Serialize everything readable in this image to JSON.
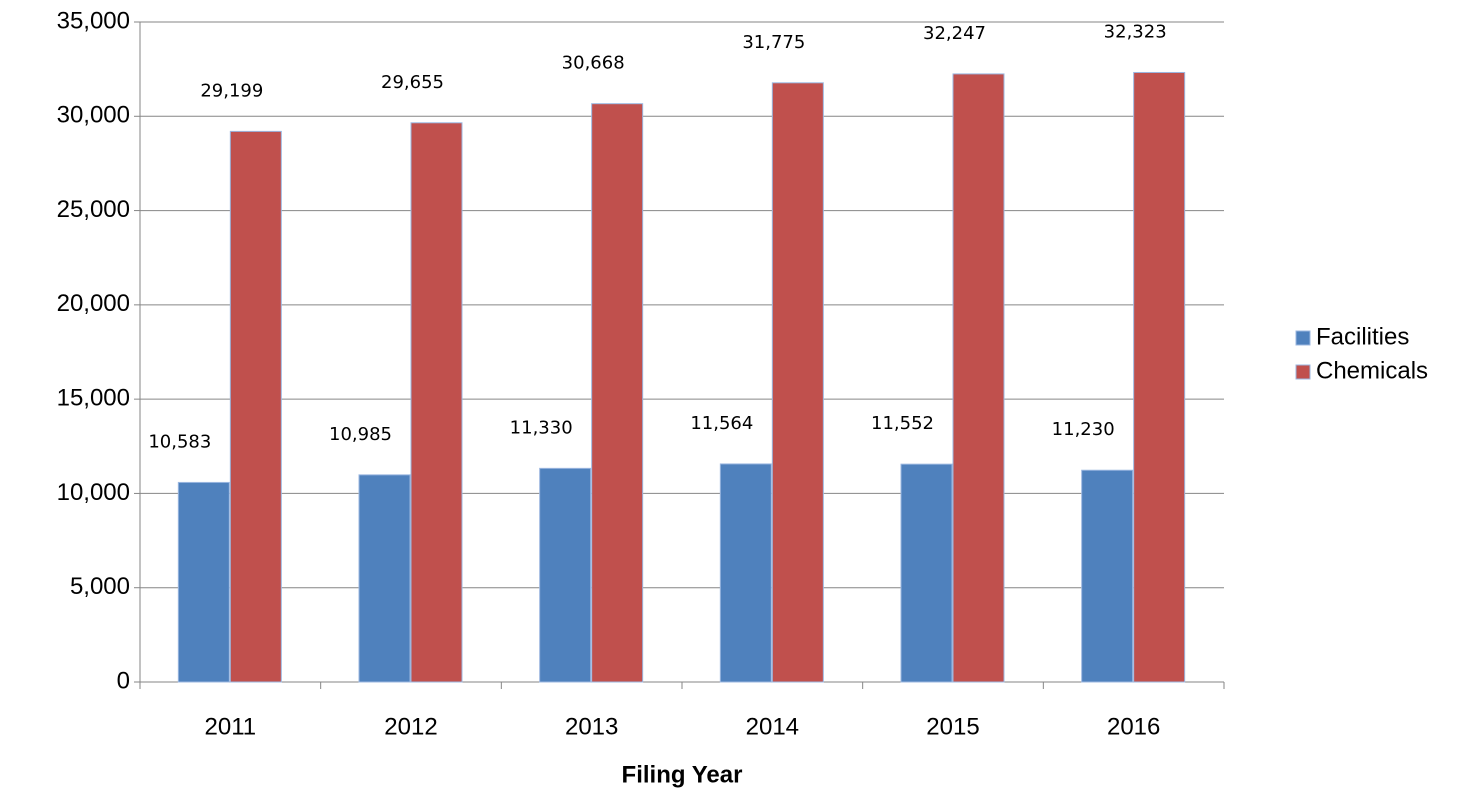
{
  "chart_data": {
    "type": "bar",
    "x_label": "Filing Year",
    "categories": [
      "2011",
      "2012",
      "2013",
      "2014",
      "2015",
      "2016"
    ],
    "series": [
      {
        "name": "Facilities",
        "color": "#4f81bd",
        "values": [
          10583,
          10985,
          11330,
          11564,
          11552,
          11230
        ],
        "value_labels": [
          "10,583",
          "10,985",
          "11,330",
          "11,564",
          "11,552",
          "11,230"
        ]
      },
      {
        "name": "Chemicals",
        "color": "#c0504d",
        "values": [
          29199,
          29655,
          30668,
          31775,
          32247,
          32323
        ],
        "value_labels": [
          "29,199",
          "29,655",
          "30,668",
          "31,775",
          "32,247",
          "32,323"
        ]
      }
    ],
    "ylim": [
      0,
      35000
    ],
    "yticks": [
      0,
      {
        "value": 5000,
        "label": "5,000"
      },
      {
        "value": 10000,
        "label": "10,000"
      },
      {
        "value": 15000,
        "label": "15,000"
      },
      {
        "value": 20000,
        "label": "20,000"
      },
      {
        "value": 25000,
        "label": "25,000"
      },
      {
        "value": 30000,
        "label": "30,000"
      },
      {
        "value": 35000,
        "label": "35,000"
      }
    ],
    "grid": true,
    "legend": "right"
  }
}
